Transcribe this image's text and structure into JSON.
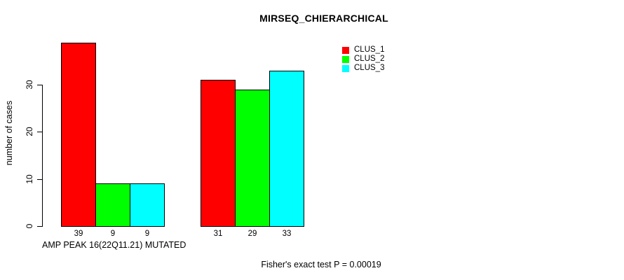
{
  "title": "MIRSEQ_CHIERARCHICAL",
  "ylabel": "number of cases",
  "xlabel": "AMP PEAK 16(22Q11.21) MUTATED",
  "footer": "Fisher's exact test P = 0.00019",
  "colors": {
    "clus_1": "#ff0000",
    "clus_2": "#00ff00",
    "clus_3": "#00ffff",
    "axis": "#000000",
    "background": "#ffffff"
  },
  "chart_data": {
    "type": "bar",
    "title": "MIRSEQ_CHIERARCHICAL",
    "xlabel": "AMP PEAK 16(22Q11.21) MUTATED",
    "ylabel": "number of cases",
    "categories": [
      "",
      ""
    ],
    "series": [
      {
        "name": "CLUS_1",
        "color": "#ff0000",
        "values": [
          39,
          31
        ]
      },
      {
        "name": "CLUS_2",
        "color": "#00ff00",
        "values": [
          9,
          29
        ]
      },
      {
        "name": "CLUS_3",
        "color": "#00ffff",
        "values": [
          9,
          33
        ]
      }
    ],
    "bar_value_labels": [
      [
        39,
        9,
        9
      ],
      [
        31,
        29,
        33
      ]
    ],
    "yticks": [
      0,
      10,
      20,
      30
    ],
    "ylim": [
      0,
      39
    ],
    "grid": false,
    "legend_position": "top-right",
    "legend_entries": [
      "CLUS_1",
      "CLUS_2",
      "CLUS_3"
    ],
    "annotation": "Fisher's exact test P = 0.00019"
  }
}
